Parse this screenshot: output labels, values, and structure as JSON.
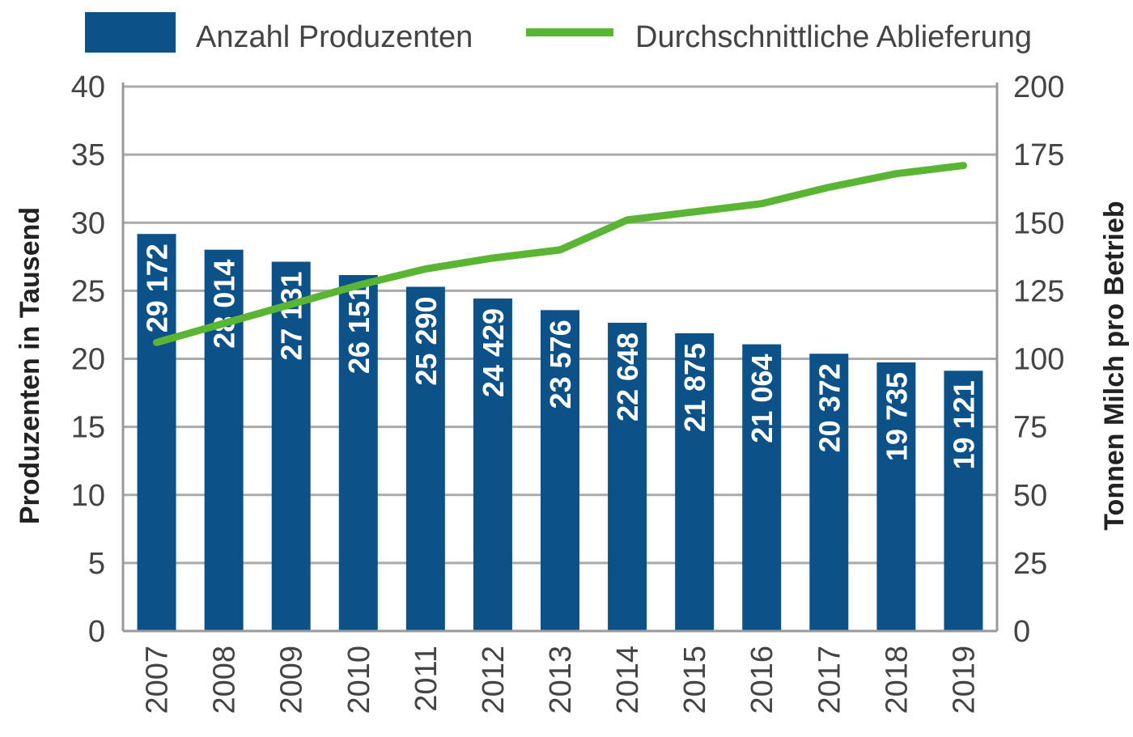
{
  "chart_data": {
    "type": "bar",
    "categories": [
      "2007",
      "2008",
      "2009",
      "2010",
      "2011",
      "2012",
      "2013",
      "2014",
      "2015",
      "2016",
      "2017",
      "2018",
      "2019"
    ],
    "series": [
      {
        "name": "Anzahl Produzenten",
        "type": "bar",
        "axis": "left",
        "color": "#0d5189",
        "values": [
          29172,
          28014,
          27131,
          26151,
          25290,
          24429,
          23576,
          22648,
          21875,
          21064,
          20372,
          19735,
          19121
        ],
        "labels": [
          "29 172",
          "28 014",
          "27 131",
          "26 151",
          "25 290",
          "24 429",
          "23 576",
          "22 648",
          "21 875",
          "21 064",
          "20 372",
          "19 735",
          "19 121"
        ]
      },
      {
        "name": "Durchschnittliche Ablieferung",
        "type": "line",
        "axis": "right",
        "color": "#5ab534",
        "values": [
          106,
          113,
          120,
          127,
          133,
          137,
          140,
          151,
          154,
          157,
          163,
          168,
          171
        ]
      }
    ],
    "ylabel": "Produzenten in Tausend",
    "y2label": "Tonnen Milch pro Betrieb",
    "ylim": [
      0,
      40
    ],
    "y2lim": [
      0,
      200
    ],
    "yticks": [
      "0",
      "5",
      "10",
      "15",
      "20",
      "25",
      "30",
      "35",
      "40"
    ],
    "y2ticks": [
      "0",
      "25",
      "50",
      "75",
      "100",
      "125",
      "150",
      "175",
      "200"
    ],
    "grid": true,
    "legend": "top"
  }
}
